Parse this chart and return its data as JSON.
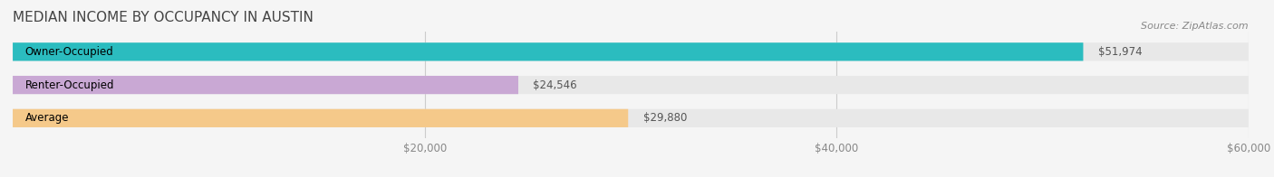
{
  "title": "MEDIAN INCOME BY OCCUPANCY IN AUSTIN",
  "source": "Source: ZipAtlas.com",
  "categories": [
    "Owner-Occupied",
    "Renter-Occupied",
    "Average"
  ],
  "values": [
    51974,
    24546,
    29880
  ],
  "bar_colors": [
    "#2BBCBF",
    "#C9A8D4",
    "#F5C98A"
  ],
  "bar_bg_color": "#E8E8E8",
  "value_labels": [
    "$51,974",
    "$24,546",
    "$29,880"
  ],
  "xlim": [
    0,
    60000
  ],
  "xticks": [
    20000,
    40000,
    60000
  ],
  "xtick_labels": [
    "$20,000",
    "$40,000",
    "$60,000"
  ],
  "title_fontsize": 11,
  "label_fontsize": 8.5,
  "value_fontsize": 8.5,
  "source_fontsize": 8,
  "bar_height": 0.55,
  "background_color": "#F5F5F5"
}
